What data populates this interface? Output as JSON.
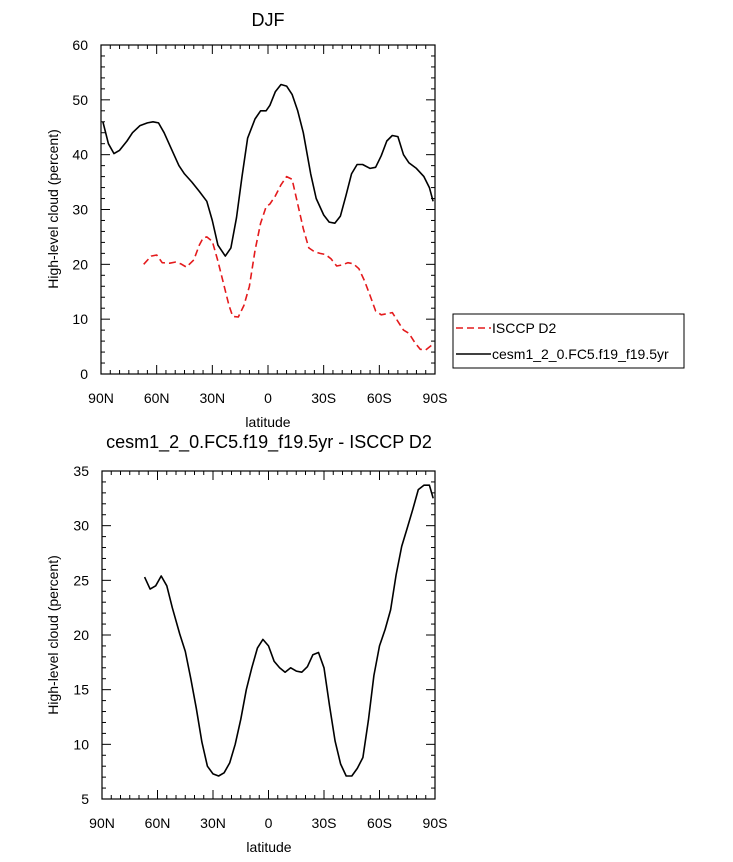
{
  "chart_data": [
    {
      "type": "line",
      "title": "DJF",
      "xlabel": "latitude",
      "ylabel": "High-level cloud (percent)",
      "xlim": [
        90,
        -90
      ],
      "ylim": [
        0,
        60
      ],
      "x_ticks": [
        90,
        60,
        30,
        0,
        -30,
        -60,
        -90
      ],
      "x_tick_labels": [
        "90N",
        "60N",
        "30N",
        "0",
        "30S",
        "60S",
        "90S"
      ],
      "y_ticks": [
        0,
        10,
        20,
        30,
        40,
        50,
        60
      ],
      "y_tick_labels": [
        "0",
        "10",
        "20",
        "30",
        "40",
        "50",
        "60"
      ],
      "legend_position": "outside-right",
      "series": [
        {
          "name": "ISCCP D2",
          "color": "#e41a1c",
          "dash": true,
          "x": [
            67,
            63,
            60,
            57,
            53,
            50,
            47,
            44,
            40,
            37,
            35,
            33,
            30,
            27,
            24,
            21,
            19,
            16,
            13,
            10,
            7,
            4,
            1,
            -1,
            -4,
            -7,
            -10,
            -13,
            -16,
            -19,
            -22,
            -25,
            -28,
            -31,
            -34,
            -37,
            -40,
            -43,
            -46,
            -49,
            -52,
            -55,
            -58,
            -61,
            -64,
            -67,
            -70,
            -73,
            -76,
            -79,
            -82,
            -85,
            -88
          ],
          "y": [
            20,
            21.5,
            21.7,
            20.3,
            20.2,
            20.4,
            20.1,
            19.5,
            20.8,
            23.5,
            24.8,
            25,
            24.2,
            20.6,
            16.5,
            12.5,
            10.5,
            10.4,
            12.5,
            16,
            22.5,
            27.5,
            30.5,
            31,
            32.5,
            34.5,
            36,
            35.5,
            31,
            26.5,
            23,
            22.3,
            22,
            21.8,
            21,
            19.7,
            19.9,
            20.3,
            20.1,
            19.2,
            17,
            14.3,
            11.5,
            10.8,
            11,
            11.2,
            9.6,
            8,
            7.4,
            5.8,
            4.5,
            4.4,
            5.2
          ]
        },
        {
          "name": "cesm1_2_0.FC5.f19_f19.5yr",
          "color": "#000000",
          "dash": false,
          "x": [
            89,
            86,
            83,
            80,
            76,
            73,
            69,
            65,
            62,
            59,
            56,
            52,
            48,
            45,
            41,
            37,
            33,
            30,
            27,
            23,
            20,
            17,
            14,
            11,
            7,
            4,
            1,
            -1,
            -4,
            -7,
            -10,
            -13,
            -16,
            -19,
            -23,
            -26,
            -30,
            -33,
            -36,
            -39,
            -42,
            -45,
            -48,
            -51,
            -55,
            -58,
            -61,
            -64,
            -67,
            -70,
            -73,
            -76,
            -80,
            -84,
            -87,
            -89
          ],
          "y": [
            46,
            42,
            40.2,
            40.8,
            42.5,
            44,
            45.3,
            45.8,
            46,
            45.8,
            44,
            41,
            38,
            36.5,
            35,
            33.3,
            31.5,
            28,
            23.5,
            21.5,
            23,
            28.5,
            36,
            43,
            46.5,
            48,
            48,
            49,
            51.5,
            52.8,
            52.5,
            51,
            48,
            44,
            36.5,
            32,
            29,
            27.7,
            27.5,
            28.8,
            32.5,
            36.5,
            38.2,
            38.2,
            37.5,
            37.7,
            39.8,
            42.5,
            43.5,
            43.3,
            40,
            38.5,
            37.5,
            36,
            34,
            31.5
          ]
        }
      ]
    },
    {
      "type": "line",
      "title": "cesm1_2_0.FC5.f19_f19.5yr - ISCCP D2",
      "xlabel": "latitude",
      "ylabel": "High-level cloud (percent)",
      "xlim": [
        90,
        -90
      ],
      "ylim": [
        5,
        35
      ],
      "x_ticks": [
        90,
        60,
        30,
        0,
        -30,
        -60,
        -90
      ],
      "x_tick_labels": [
        "90N",
        "60N",
        "30N",
        "0",
        "30S",
        "60S",
        "90S"
      ],
      "y_ticks": [
        5,
        10,
        15,
        20,
        25,
        30,
        35
      ],
      "y_tick_labels": [
        "5",
        "10",
        "15",
        "20",
        "25",
        "30",
        "35"
      ],
      "series": [
        {
          "name": "cesm1_2_0.FC5.f19_f19.5yr - ISCCP D2",
          "color": "#000000",
          "dash": false,
          "x": [
            67,
            64,
            61,
            58,
            55,
            52,
            48,
            45,
            42,
            39,
            36,
            33,
            30,
            27,
            24,
            21,
            18,
            15,
            12,
            9,
            6,
            3,
            0,
            -3,
            -6,
            -9,
            -12,
            -15,
            -18,
            -21,
            -24,
            -27,
            -30,
            -33,
            -36,
            -39,
            -42,
            -45,
            -48,
            -51,
            -54,
            -57,
            -60,
            -63,
            -66,
            -69,
            -72,
            -75,
            -78,
            -81,
            -84,
            -87,
            -89
          ],
          "y": [
            25.3,
            24.2,
            24.5,
            25.4,
            24.5,
            22.5,
            20.1,
            18.5,
            16,
            13.3,
            10.2,
            8,
            7.3,
            7.1,
            7.4,
            8.3,
            10,
            12.3,
            15,
            17,
            18.8,
            19.6,
            19,
            17.6,
            17,
            16.6,
            17,
            16.7,
            16.6,
            17.1,
            18.2,
            18.4,
            17,
            13.5,
            10.3,
            8.2,
            7.1,
            7.1,
            7.8,
            8.8,
            12.2,
            16.3,
            19,
            20.5,
            22.3,
            25.5,
            28.1,
            29.8,
            31.5,
            33.3,
            33.7,
            33.7,
            32.5
          ]
        }
      ]
    }
  ]
}
